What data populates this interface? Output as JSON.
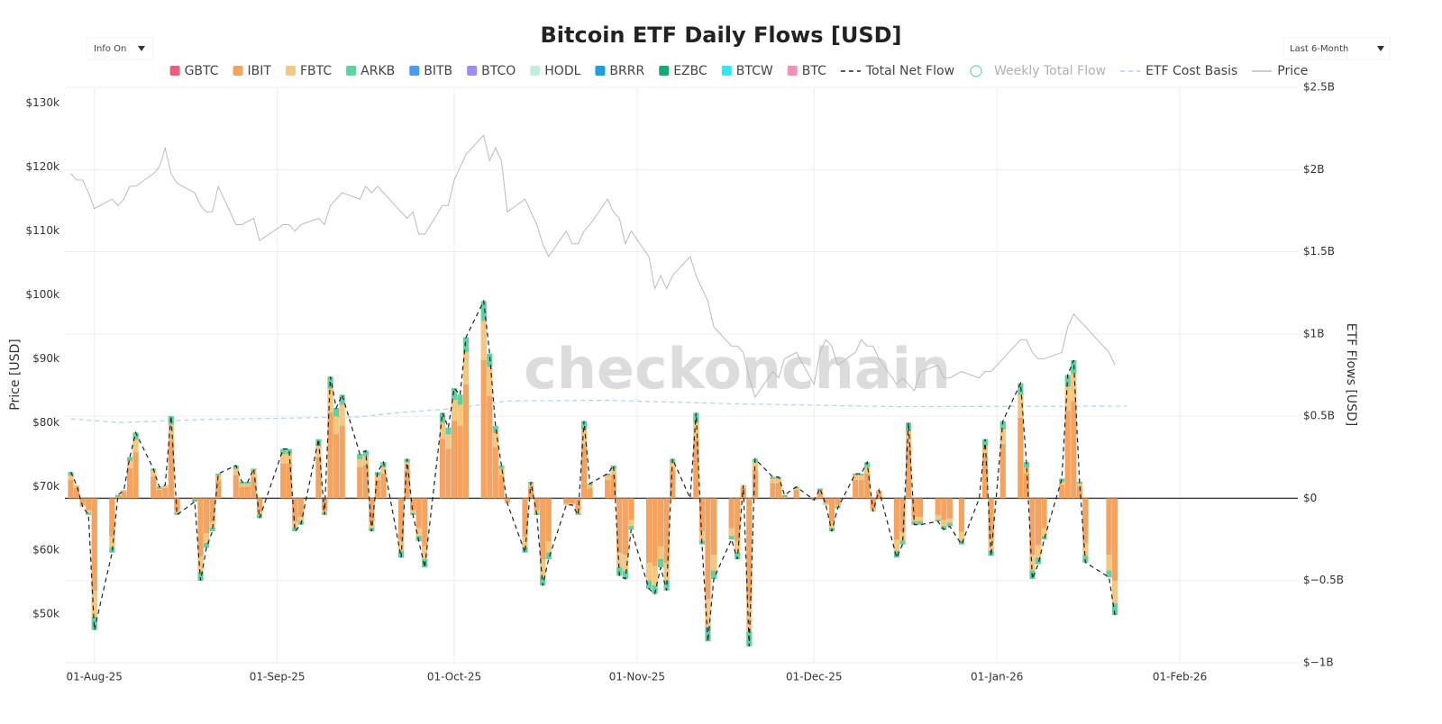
{
  "controls": {
    "left": "Info On",
    "right": "Last 6-Month"
  },
  "watermark": "checkonchain",
  "chart_data": {
    "type": "bar",
    "title": "Bitcoin ETF Daily Flows [USD]",
    "ylabel": "Price [USD]",
    "y2label": "ETF Flows [USD]",
    "x": [
      "2025-07-28",
      "2025-07-29",
      "2025-07-30",
      "2025-07-31",
      "2025-08-01",
      "2025-08-04",
      "2025-08-05",
      "2025-08-06",
      "2025-08-07",
      "2025-08-08",
      "2025-08-11",
      "2025-08-12",
      "2025-08-13",
      "2025-08-14",
      "2025-08-15",
      "2025-08-18",
      "2025-08-19",
      "2025-08-20",
      "2025-08-21",
      "2025-08-22",
      "2025-08-25",
      "2025-08-26",
      "2025-08-27",
      "2025-08-28",
      "2025-08-29",
      "2025-09-02",
      "2025-09-03",
      "2025-09-04",
      "2025-09-05",
      "2025-09-08",
      "2025-09-09",
      "2025-09-10",
      "2025-09-11",
      "2025-09-12",
      "2025-09-15",
      "2025-09-16",
      "2025-09-17",
      "2025-09-18",
      "2025-09-19",
      "2025-09-22",
      "2025-09-23",
      "2025-09-24",
      "2025-09-25",
      "2025-09-26",
      "2025-09-29",
      "2025-09-30",
      "2025-10-01",
      "2025-10-02",
      "2025-10-03",
      "2025-10-06",
      "2025-10-07",
      "2025-10-08",
      "2025-10-09",
      "2025-10-10",
      "2025-10-13",
      "2025-10-14",
      "2025-10-15",
      "2025-10-16",
      "2025-10-17",
      "2025-10-20",
      "2025-10-21",
      "2025-10-22",
      "2025-10-23",
      "2025-10-24",
      "2025-10-27",
      "2025-10-28",
      "2025-10-29",
      "2025-10-30",
      "2025-10-31",
      "2025-11-03",
      "2025-11-04",
      "2025-11-05",
      "2025-11-06",
      "2025-11-07",
      "2025-11-10",
      "2025-11-11",
      "2025-11-12",
      "2025-11-13",
      "2025-11-14",
      "2025-11-17",
      "2025-11-18",
      "2025-11-19",
      "2025-11-20",
      "2025-11-21",
      "2025-11-24",
      "2025-11-25",
      "2025-11-26",
      "2025-11-28",
      "2025-12-01",
      "2025-12-02",
      "2025-12-03",
      "2025-12-04",
      "2025-12-05",
      "2025-12-08",
      "2025-12-09",
      "2025-12-10",
      "2025-12-11",
      "2025-12-12",
      "2025-12-15",
      "2025-12-16",
      "2025-12-17",
      "2025-12-18",
      "2025-12-19",
      "2025-12-22",
      "2025-12-23",
      "2025-12-24",
      "2025-12-26",
      "2025-12-29",
      "2025-12-30",
      "2025-12-31",
      "2026-01-02",
      "2026-01-05",
      "2026-01-06",
      "2026-01-07",
      "2026-01-08",
      "2026-01-09",
      "2026-01-12",
      "2026-01-13",
      "2026-01-14",
      "2026-01-15",
      "2026-01-16",
      "2026-01-20",
      "2026-01-21"
    ],
    "series": [
      {
        "name": "GBTC",
        "color": "#ee5d79",
        "kind": "bar",
        "axis": "y2"
      },
      {
        "name": "IBIT",
        "color": "#f6a35e",
        "kind": "bar",
        "axis": "y2",
        "values": [
          0.11,
          0.06,
          -0.04,
          -0.07,
          -0.56,
          -0.23,
          0.01,
          0.04,
          0.18,
          0.28,
          0.13,
          0.05,
          0.06,
          0.35,
          -0.07,
          -0.01,
          -0.35,
          -0.21,
          -0.14,
          0.11,
          0.14,
          0.07,
          0.07,
          0.13,
          -0.08,
          0.21,
          0.21,
          -0.14,
          -0.11,
          0.25,
          -0.07,
          0.52,
          0.39,
          0.44,
          0.19,
          0.2,
          -0.14,
          0.11,
          0.15,
          -0.25,
          0.17,
          -0.07,
          -0.18,
          -0.29,
          0.36,
          0.3,
          0.47,
          0.44,
          0.69,
          0.84,
          0.62,
          0.31,
          0.14,
          -0.02,
          -0.23,
          0.07,
          -0.07,
          -0.37,
          -0.26,
          -0.03,
          -0.03,
          -0.07,
          0.33,
          0.06,
          0.11,
          0.14,
          -0.33,
          -0.34,
          -0.13,
          -0.39,
          -0.41,
          -0.29,
          -0.39,
          0.17,
          0,
          0.36,
          -0.2,
          -0.61,
          -0.34,
          -0.18,
          -0.26,
          0.06,
          -0.63,
          0.17,
          0.09,
          0.09,
          0.01,
          0.05,
          -0.01,
          0.04,
          -0.03,
          -0.14,
          -0.04,
          0.11,
          0.11,
          0.15,
          -0.06,
          0.04,
          -0.25,
          -0.2,
          0.32,
          -0.11,
          -0.11,
          -0.1,
          -0.13,
          -0.12,
          -0.2,
          0,
          0.25,
          -0.25,
          0.33,
          0.49,
          0.15,
          -0.34,
          -0.28,
          -0.18,
          0.08,
          0.53,
          0.59,
          0.07,
          -0.27,
          -0.34,
          -0.5
        ]
      },
      {
        "name": "FBTC",
        "color": "#f8c77e",
        "kind": "bar",
        "axis": "y2",
        "values": [
          0.03,
          0.02,
          -0.01,
          -0.02,
          -0.16,
          -0.07,
          0,
          0.01,
          0.05,
          0.08,
          0.04,
          0.01,
          0.02,
          0.1,
          -0.02,
          0,
          -0.1,
          -0.06,
          -0.04,
          0.03,
          0.04,
          0.02,
          0.02,
          0.04,
          -0.02,
          0.06,
          0.06,
          -0.04,
          -0.03,
          0.07,
          -0.02,
          0.15,
          0.11,
          0.13,
          0.05,
          0.06,
          -0.04,
          0.03,
          0.04,
          -0.07,
          0.05,
          -0.02,
          -0.05,
          -0.08,
          0.1,
          0.09,
          0.13,
          0.13,
          0.2,
          0.24,
          0.18,
          0.09,
          0.04,
          -0.01,
          -0.07,
          0.02,
          -0.02,
          -0.11,
          -0.07,
          -0.01,
          -0.01,
          -0.02,
          0.09,
          0.02,
          0.03,
          0.04,
          -0.09,
          -0.1,
          -0.04,
          -0.11,
          -0.12,
          -0.08,
          -0.11,
          0.05,
          0,
          0.1,
          -0.06,
          -0.17,
          -0.1,
          -0.05,
          -0.07,
          0.02,
          -0.18,
          0.05,
          0.03,
          0.03,
          0,
          0.01,
          0,
          0.01,
          -0.01,
          -0.04,
          -0.01,
          0.03,
          0.03,
          0.04,
          -0.02,
          0.01,
          -0.07,
          -0.06,
          0.09,
          -0.03,
          -0.03,
          -0.03,
          -0.04,
          -0.03,
          -0.06,
          0,
          0.07,
          -0.07,
          0.09,
          0.14,
          0.04,
          -0.1,
          -0.08,
          -0.05,
          0.02,
          0.15,
          0.17,
          0.02,
          -0.08,
          -0.1,
          -0.14
        ]
      },
      {
        "name": "ARKB",
        "color": "#5ed3a0",
        "kind": "bar",
        "axis": "y2",
        "values": [
          0.02,
          0,
          0,
          -0.01,
          -0.08,
          -0.03,
          0.01,
          0,
          0.02,
          0.04,
          0.01,
          0.01,
          0,
          0.05,
          -0.01,
          -0.01,
          -0.05,
          -0.03,
          -0.02,
          0.01,
          0.02,
          0.01,
          0.01,
          0.01,
          -0.02,
          0.03,
          0.03,
          -0.02,
          -0.02,
          0.04,
          -0.01,
          0.07,
          0.05,
          0.06,
          0.03,
          0.03,
          -0.02,
          0.02,
          0.03,
          -0.04,
          0.02,
          -0.01,
          -0.03,
          -0.05,
          0.06,
          0.04,
          0.07,
          0.06,
          0.09,
          0.12,
          0.08,
          0.04,
          0.02,
          0,
          -0.03,
          0.01,
          -0.01,
          -0.05,
          -0.04,
          0,
          0,
          -0.01,
          0.05,
          0.01,
          0.01,
          0.02,
          -0.05,
          -0.05,
          -0.02,
          -0.05,
          -0.05,
          -0.05,
          -0.06,
          0.02,
          0,
          0.06,
          -0.02,
          -0.09,
          -0.05,
          -0.02,
          -0.04,
          0,
          -0.09,
          0.02,
          0.01,
          0.01,
          0.01,
          0.01,
          0,
          0.01,
          0,
          -0.02,
          -0.01,
          0.01,
          0.01,
          0.03,
          0,
          0,
          -0.04,
          -0.02,
          0.05,
          -0.02,
          -0.02,
          -0.01,
          -0.02,
          -0.02,
          -0.02,
          0,
          0.04,
          -0.03,
          0.05,
          0.07,
          0.03,
          -0.05,
          -0.04,
          -0.02,
          0.02,
          0.07,
          0.08,
          0.01,
          -0.04,
          -0.04,
          -0.07
        ]
      },
      {
        "name": "BITB",
        "color": "#4b9bf0",
        "kind": "bar",
        "axis": "y2"
      },
      {
        "name": "BTCO",
        "color": "#9c8df2",
        "kind": "bar",
        "axis": "y2"
      },
      {
        "name": "HODL",
        "color": "#bfeedd",
        "kind": "bar",
        "axis": "y2"
      },
      {
        "name": "BRRR",
        "color": "#1b9ee3",
        "kind": "bar",
        "axis": "y2"
      },
      {
        "name": "EZBC",
        "color": "#10ae73",
        "kind": "bar",
        "axis": "y2"
      },
      {
        "name": "BTCW",
        "color": "#24eef4",
        "kind": "bar",
        "axis": "y2"
      },
      {
        "name": "BTC",
        "color": "#f590b8",
        "kind": "bar",
        "axis": "y2"
      },
      {
        "name": "Total Net Flow",
        "color": "#222222",
        "kind": "line",
        "dash": true,
        "axis": "y2",
        "values": [
          0.16,
          0.08,
          -0.05,
          -0.1,
          -0.8,
          -0.33,
          0.02,
          0.05,
          0.25,
          0.4,
          0.18,
          0.07,
          0.08,
          0.5,
          -0.1,
          -0.02,
          -0.5,
          -0.3,
          -0.2,
          0.15,
          0.2,
          0.1,
          0.1,
          0.18,
          -0.12,
          0.3,
          0.3,
          -0.2,
          -0.16,
          0.36,
          -0.1,
          0.74,
          0.55,
          0.63,
          0.27,
          0.29,
          -0.2,
          0.16,
          0.22,
          -0.36,
          0.24,
          -0.1,
          -0.26,
          -0.42,
          0.52,
          0.43,
          0.67,
          0.63,
          0.98,
          1.2,
          0.88,
          0.44,
          0.2,
          -0.03,
          -0.33,
          0.1,
          -0.1,
          -0.53,
          -0.37,
          -0.04,
          -0.04,
          -0.1,
          0.47,
          0.09,
          0.15,
          0.2,
          -0.47,
          -0.49,
          -0.19,
          -0.55,
          -0.58,
          -0.42,
          -0.56,
          0.24,
          0,
          0.52,
          -0.28,
          -0.87,
          -0.49,
          -0.25,
          -0.37,
          0.08,
          -0.9,
          0.24,
          0.13,
          0.13,
          0.02,
          0.07,
          -0.01,
          0.06,
          -0.04,
          -0.2,
          -0.06,
          0.15,
          0.15,
          0.22,
          -0.08,
          0.05,
          -0.36,
          -0.28,
          0.46,
          -0.16,
          -0.16,
          -0.14,
          -0.19,
          -0.17,
          -0.28,
          0,
          0.36,
          -0.35,
          0.47,
          0.7,
          0.22,
          -0.49,
          -0.4,
          -0.25,
          0.12,
          0.75,
          0.84,
          0.1,
          -0.39,
          -0.48,
          -0.71
        ]
      },
      {
        "name": "Weekly Total Flow",
        "color": "#6fd3b0",
        "kind": "marker",
        "visible": false
      },
      {
        "name": "ETF Cost Basis",
        "color": "#a8d4f5",
        "kind": "line",
        "dash": true,
        "axis": "y",
        "x": [
          "2025-07-28",
          "2025-08-05",
          "2025-08-20",
          "2025-09-15",
          "2025-09-22",
          "2025-10-01",
          "2025-10-10",
          "2025-10-27",
          "2025-11-15",
          "2025-12-15",
          "2026-01-23"
        ],
        "values": [
          80600,
          80000,
          80500,
          80900,
          81600,
          82200,
          83400,
          83500,
          83000,
          82500,
          82600
        ]
      },
      {
        "name": "Price",
        "color": "#bbbbbb",
        "kind": "line",
        "axis": "y",
        "values": [
          119000,
          118000,
          118000,
          116000,
          113500,
          115000,
          114000,
          115000,
          117000,
          117000,
          119000,
          120000,
          123000,
          119000,
          117500,
          116000,
          114000,
          113000,
          113000,
          117000,
          111000,
          111000,
          111500,
          112000,
          108500,
          111000,
          111000,
          110000,
          111000,
          112000,
          111000,
          114000,
          115000,
          116000,
          115000,
          117000,
          116000,
          117000,
          116000,
          113000,
          112000,
          113000,
          109500,
          109500,
          114000,
          114000,
          118000,
          120000,
          122000,
          125000,
          121000,
          123000,
          121000,
          113000,
          115000,
          113000,
          111000,
          108000,
          106000,
          110000,
          108000,
          108000,
          110000,
          111000,
          115000,
          113000,
          112000,
          108000,
          110000,
          106000,
          101000,
          103000,
          101000,
          103000,
          106000,
          103000,
          101000,
          99000,
          95000,
          92000,
          92000,
          91000,
          87000,
          84000,
          88000,
          87000,
          90000,
          91000,
          86000,
          91000,
          93000,
          92000,
          89000,
          91000,
          93000,
          92000,
          92000,
          90000,
          86000,
          87000,
          86000,
          85000,
          88000,
          89000,
          87000,
          87000,
          88000,
          87000,
          88000,
          88000,
          90000,
          93000,
          93000,
          91000,
          90000,
          90000,
          91000,
          95000,
          97000,
          96000,
          95000,
          91000,
          89000
        ]
      }
    ],
    "xlim": [
      "2025-07-27",
      "2026-02-21"
    ],
    "xticks": [
      {
        "value": "2025-08-01",
        "label": "01-Aug-25"
      },
      {
        "value": "2025-09-01",
        "label": "01-Sep-25"
      },
      {
        "value": "2025-10-01",
        "label": "01-Oct-25"
      },
      {
        "value": "2025-11-01",
        "label": "01-Nov-25"
      },
      {
        "value": "2025-12-01",
        "label": "01-Dec-25"
      },
      {
        "value": "2026-01-01",
        "label": "01-Jan-26"
      },
      {
        "value": "2026-02-01",
        "label": "01-Feb-26"
      }
    ],
    "ylim": [
      42400,
      132500
    ],
    "yticks": [
      {
        "value": 50000,
        "label": "$50k"
      },
      {
        "value": 60000,
        "label": "$60k"
      },
      {
        "value": 70000,
        "label": "$70k"
      },
      {
        "value": 80000,
        "label": "$80k"
      },
      {
        "value": 90000,
        "label": "$90k"
      },
      {
        "value": 100000,
        "label": "$100k"
      },
      {
        "value": 110000,
        "label": "$110k"
      },
      {
        "value": 120000,
        "label": "$120k"
      },
      {
        "value": 130000,
        "label": "$130k"
      }
    ],
    "y2lim": [
      -1,
      2.5
    ],
    "y2ticks": [
      {
        "value": -1,
        "label": "$−1B"
      },
      {
        "value": -0.5,
        "label": "$−0.5B"
      },
      {
        "value": 0,
        "label": "$0"
      },
      {
        "value": 0.5,
        "label": "$0.5B"
      },
      {
        "value": 1,
        "label": "$1B"
      },
      {
        "value": 1.5,
        "label": "$1.5B"
      },
      {
        "value": 2,
        "label": "$2B"
      },
      {
        "value": 2.5,
        "label": "$2.5B"
      }
    ],
    "grid": true
  }
}
